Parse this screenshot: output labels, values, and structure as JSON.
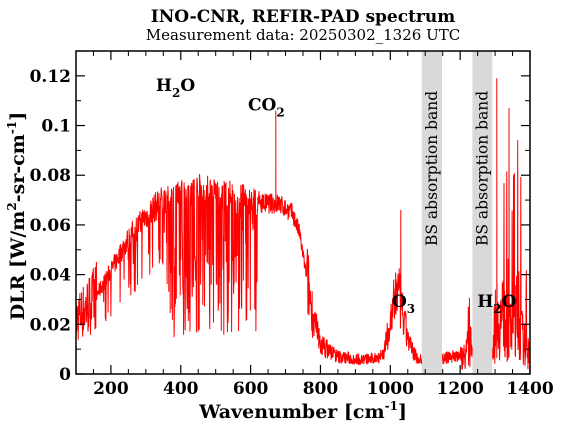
{
  "chart_data": {
    "type": "line",
    "title": "INO-CNR, REFIR-PAD spectrum",
    "subtitle": "Measurement data: 20250302_1326 UTC",
    "xlabel": "Wavenumber [cm",
    "xlabel_sup": "-1",
    "xlabel_close": "]",
    "ylabel_parts": [
      "DLR [W/m",
      "2",
      "-sr-cm",
      "-1",
      "]"
    ],
    "xlim": [
      100,
      1400
    ],
    "ylim": [
      0,
      0.13
    ],
    "xticks": [
      "200",
      "400",
      "600",
      "800",
      "1000",
      "1200",
      "1400"
    ],
    "yticks": [
      "0",
      "0.02",
      "0.04",
      "0.06",
      "0.08",
      "0.1",
      "0.12"
    ],
    "x_tick_values": [
      200,
      400,
      600,
      800,
      1000,
      1200,
      1400
    ],
    "y_tick_values": [
      0,
      0.02,
      0.04,
      0.06,
      0.08,
      0.1,
      0.12
    ],
    "grid": false,
    "series": [
      {
        "color": "#ff0000",
        "envelope": [
          [
            100,
            0.022
          ],
          [
            150,
            0.03
          ],
          [
            200,
            0.042
          ],
          [
            250,
            0.055
          ],
          [
            300,
            0.064
          ],
          [
            350,
            0.071
          ],
          [
            400,
            0.075
          ],
          [
            450,
            0.077
          ],
          [
            500,
            0.076
          ],
          [
            550,
            0.074
          ],
          [
            600,
            0.072
          ],
          [
            640,
            0.07
          ],
          [
            680,
            0.07
          ],
          [
            700,
            0.068
          ],
          [
            720,
            0.066
          ],
          [
            740,
            0.058
          ],
          [
            760,
            0.04
          ],
          [
            780,
            0.022
          ],
          [
            800,
            0.012
          ],
          [
            850,
            0.007
          ],
          [
            900,
            0.006
          ],
          [
            950,
            0.006
          ],
          [
            980,
            0.008
          ],
          [
            1000,
            0.02
          ],
          [
            1020,
            0.035
          ],
          [
            1040,
            0.02
          ],
          [
            1060,
            0.01
          ],
          [
            1080,
            0.006
          ],
          [
            1150,
            0.006
          ],
          [
            1200,
            0.008
          ],
          [
            1230,
            0.012
          ],
          [
            1240,
            0.012
          ],
          [
            1300,
            0.02
          ],
          [
            1320,
            0.03
          ],
          [
            1340,
            0.02
          ],
          [
            1360,
            0.03
          ],
          [
            1400,
            0.005
          ]
        ],
        "peaks": [
          {
            "x": 672,
            "y": 0.106
          },
          {
            "x": 1305,
            "y": 0.119
          },
          {
            "x": 1340,
            "y": 0.107
          },
          {
            "x": 1030,
            "y": 0.066
          }
        ]
      }
    ],
    "bands": [
      {
        "label": "BS absorption band",
        "x0": 1090,
        "x1": 1148
      },
      {
        "label": "BS absorption band",
        "x0": 1235,
        "x1": 1292
      }
    ],
    "annotations": [
      {
        "base": "H",
        "sub": "2",
        "tail": "O",
        "x": 385,
        "y": 0.114
      },
      {
        "base": "CO",
        "sub": "2",
        "tail": "",
        "x": 645,
        "y": 0.106
      },
      {
        "base": "O",
        "sub": "3",
        "tail": "",
        "x": 1038,
        "y": 0.027
      },
      {
        "base": "H",
        "sub": "2",
        "tail": "O",
        "x": 1305,
        "y": 0.027
      }
    ]
  }
}
